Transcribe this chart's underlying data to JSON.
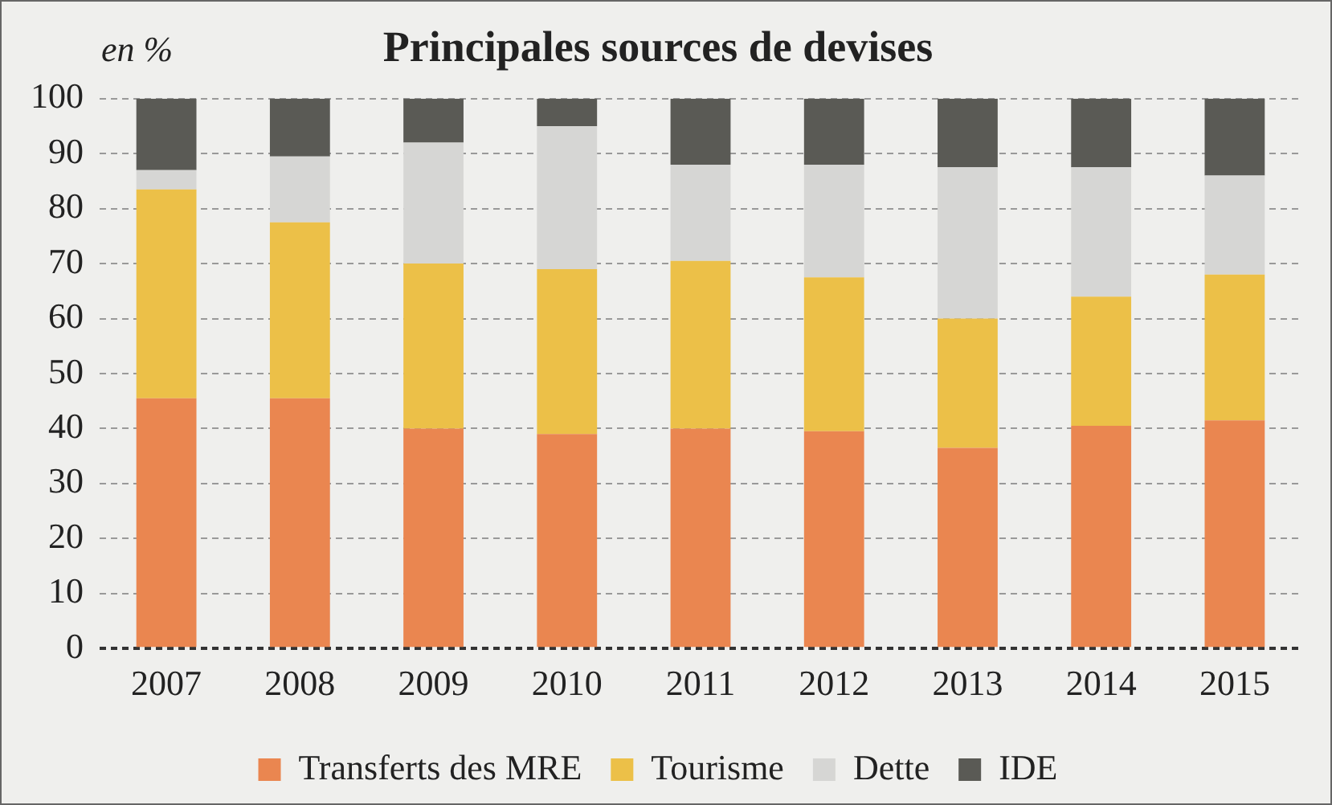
{
  "chart_data": {
    "type": "bar",
    "stacked": true,
    "title": "Principales sources de devises",
    "ylabel": "en %",
    "categories": [
      "2007",
      "2008",
      "2009",
      "2010",
      "2011",
      "2012",
      "2013",
      "2014",
      "2015"
    ],
    "series": [
      {
        "name": "Transferts des MRE",
        "color": "#ea8650",
        "values": [
          45.5,
          45.5,
          40,
          39,
          40,
          39.5,
          36.5,
          40.5,
          41.5
        ]
      },
      {
        "name": "Tourisme",
        "color": "#ecc048",
        "values": [
          38,
          32,
          30,
          30,
          30.5,
          28,
          23.5,
          23.5,
          26.5
        ]
      },
      {
        "name": "Dette",
        "color": "#d6d6d4",
        "values": [
          3.5,
          12,
          22,
          26,
          17.5,
          20.5,
          27.5,
          23.5,
          18
        ]
      },
      {
        "name": "IDE",
        "color": "#5a5a55",
        "values": [
          13,
          10.5,
          8,
          5,
          12,
          12,
          12.5,
          12.5,
          14
        ]
      }
    ],
    "ylim": [
      0,
      100
    ],
    "yticks": [
      0,
      10,
      20,
      30,
      40,
      50,
      60,
      70,
      80,
      90,
      100
    ],
    "grid": "y",
    "legend": "bottom"
  }
}
